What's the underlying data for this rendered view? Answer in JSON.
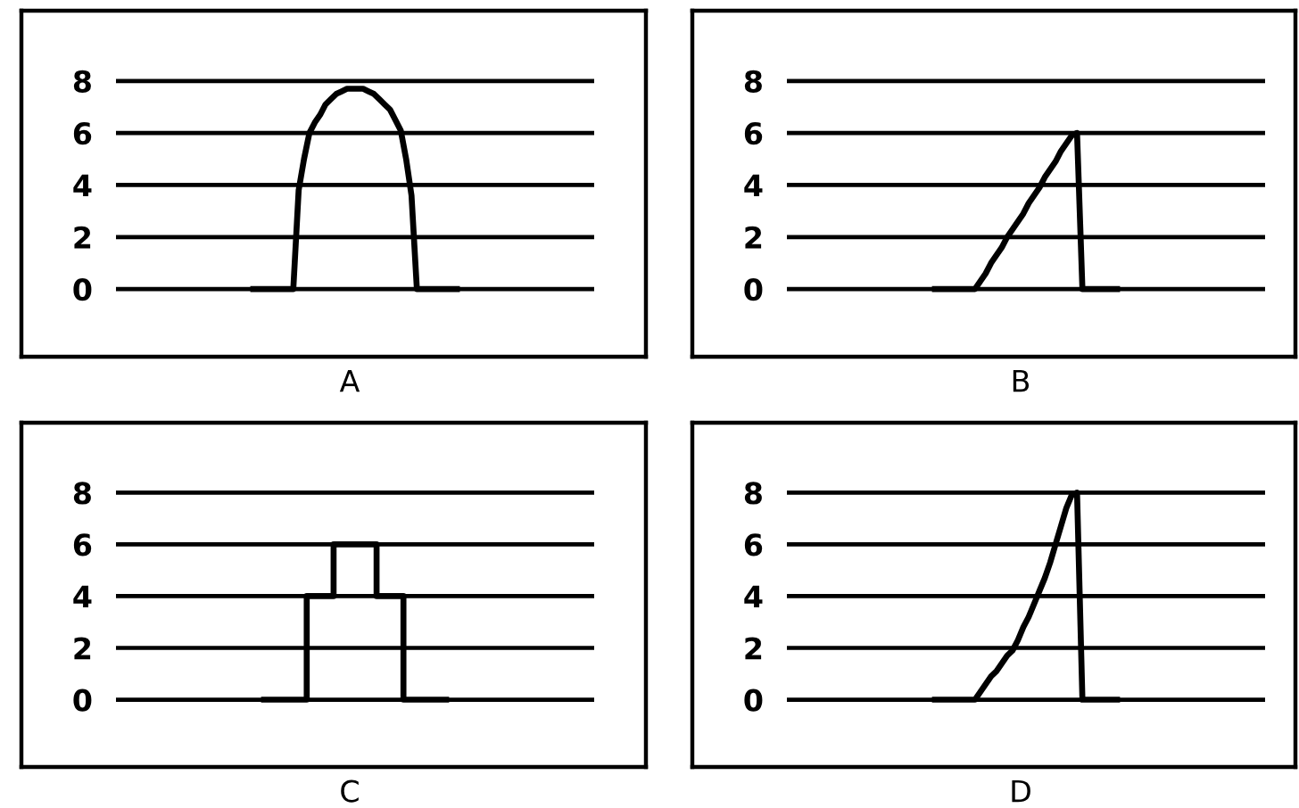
{
  "chart_data": [
    {
      "type": "line",
      "xlabel": "A",
      "color": "#000000",
      "ylim": [
        -2.6,
        10.7
      ],
      "yticks": [
        0,
        2,
        4,
        6,
        8
      ],
      "grid": "y",
      "tick_labels": "y",
      "categories": [
        null,
        null,
        null,
        null,
        null,
        null,
        null,
        null,
        null,
        null,
        null,
        null,
        null,
        null,
        null,
        null,
        null,
        null,
        null,
        null,
        null,
        null,
        null,
        null,
        null,
        null,
        null,
        null,
        null,
        null,
        null,
        null,
        null,
        null,
        null,
        null,
        null,
        null,
        null,
        null,
        null,
        null,
        null,
        null,
        null,
        null,
        null,
        null,
        null,
        null,
        null,
        null,
        null,
        null,
        null,
        null,
        null,
        null,
        null,
        null,
        null,
        null,
        null,
        null,
        null,
        null,
        null,
        null,
        null,
        null,
        null,
        null,
        null,
        null,
        null,
        null,
        null,
        null,
        null,
        null,
        null,
        null,
        null,
        null,
        null,
        null,
        null,
        null,
        null,
        null
      ],
      "values": [
        null,
        null,
        null,
        null,
        null,
        null,
        null,
        null,
        null,
        null,
        null,
        null,
        null,
        null,
        null,
        null,
        null,
        null,
        null,
        null,
        null,
        null,
        null,
        null,
        null,
        0,
        0,
        0,
        0,
        0,
        0,
        0,
        0,
        0,
        3.8,
        5.0,
        6.0,
        6.4,
        6.7,
        7.1,
        7.3,
        7.5,
        7.6,
        7.7,
        7.7,
        7.7,
        7.7,
        7.6,
        7.5,
        7.3,
        7.1,
        6.9,
        6.5,
        6.1,
        5.0,
        3.6,
        0,
        0,
        0,
        0,
        0,
        0,
        0,
        0,
        0,
        null,
        null,
        null,
        null,
        null,
        null,
        null,
        null,
        null,
        null,
        null,
        null,
        null,
        null,
        null,
        null,
        null,
        null,
        null,
        null,
        null,
        null,
        null,
        null,
        null
      ]
    },
    {
      "type": "line",
      "xlabel": "B",
      "color": "#000000",
      "ylim": [
        -2.6,
        10.7
      ],
      "yticks": [
        0,
        2,
        4,
        6,
        8
      ],
      "grid": "y",
      "tick_labels": "y",
      "categories": [
        null,
        null,
        null,
        null,
        null,
        null,
        null,
        null,
        null,
        null,
        null,
        null,
        null,
        null,
        null,
        null,
        null,
        null,
        null,
        null,
        null,
        null,
        null,
        null,
        null,
        null,
        null,
        null,
        null,
        null,
        null,
        null,
        null,
        null,
        null,
        null,
        null,
        null,
        null,
        null,
        null,
        null,
        null,
        null,
        null,
        null,
        null,
        null,
        null,
        null,
        null,
        null,
        null,
        null,
        null,
        null,
        null,
        null,
        null,
        null,
        null,
        null,
        null,
        null,
        null,
        null,
        null,
        null,
        null,
        null,
        null,
        null,
        null,
        null,
        null,
        null,
        null,
        null,
        null,
        null,
        null,
        null,
        null,
        null,
        null,
        null,
        null,
        null,
        null,
        null
      ],
      "values": [
        null,
        null,
        null,
        null,
        null,
        null,
        null,
        null,
        null,
        null,
        null,
        null,
        null,
        null,
        null,
        null,
        null,
        null,
        null,
        null,
        null,
        null,
        null,
        null,
        null,
        null,
        null,
        0,
        0,
        0,
        0,
        0,
        0,
        0,
        0,
        0,
        0.3,
        0.6,
        1.0,
        1.3,
        1.6,
        2.0,
        2.3,
        2.6,
        2.9,
        3.3,
        3.6,
        3.9,
        4.3,
        4.6,
        4.9,
        5.3,
        5.6,
        5.9,
        6.0,
        0,
        0,
        0,
        0,
        0,
        0,
        0,
        0,
        null,
        null,
        null,
        null,
        null,
        null,
        null,
        null,
        null,
        null,
        null,
        null,
        null,
        null,
        null,
        null,
        null,
        null,
        null,
        null,
        null,
        null,
        null,
        null,
        null,
        null,
        null
      ]
    },
    {
      "type": "step",
      "xlabel": "C",
      "color": "#000000",
      "ylim": [
        -2.6,
        10.7
      ],
      "yticks": [
        0,
        2,
        4,
        6,
        8
      ],
      "grid": "y",
      "tick_labels": "y",
      "categories": [
        null,
        null,
        null,
        null,
        null,
        null,
        null,
        null,
        null,
        null,
        null,
        null,
        null,
        null,
        null,
        null,
        null,
        null,
        null,
        null,
        null,
        null,
        null,
        null,
        null,
        null,
        null,
        null,
        null,
        null,
        null,
        null,
        null,
        null,
        null,
        null,
        null,
        null,
        null,
        null,
        null,
        null,
        null,
        null,
        null,
        null,
        null,
        null,
        null,
        null,
        null,
        null,
        null,
        null,
        null,
        null,
        null,
        null,
        null,
        null,
        null,
        null,
        null,
        null,
        null,
        null,
        null,
        null,
        null,
        null,
        null,
        null,
        null,
        null,
        null,
        null,
        null,
        null,
        null,
        null,
        null,
        null,
        null,
        null,
        null,
        null,
        null,
        null,
        null,
        null
      ],
      "values": [
        null,
        null,
        null,
        null,
        null,
        null,
        null,
        null,
        null,
        null,
        null,
        null,
        null,
        null,
        null,
        null,
        null,
        null,
        null,
        null,
        null,
        null,
        null,
        null,
        null,
        null,
        null,
        0,
        0,
        0,
        0,
        0,
        0,
        0,
        0,
        0,
        4,
        4,
        4,
        4,
        4,
        6,
        6,
        6,
        6,
        6,
        6,
        6,
        6,
        4,
        4,
        4,
        4,
        4,
        0,
        0,
        0,
        0,
        0,
        0,
        0,
        0,
        0,
        null,
        null,
        null,
        null,
        null,
        null,
        null,
        null,
        null,
        null,
        null,
        null,
        null,
        null,
        null,
        null,
        null,
        null,
        null,
        null,
        null,
        null,
        null,
        null,
        null,
        null,
        null
      ]
    },
    {
      "type": "line",
      "xlabel": "D",
      "color": "#000000",
      "ylim": [
        -2.6,
        10.7
      ],
      "yticks": [
        0,
        2,
        4,
        6,
        8
      ],
      "grid": "y",
      "tick_labels": "y",
      "categories": [
        null,
        null,
        null,
        null,
        null,
        null,
        null,
        null,
        null,
        null,
        null,
        null,
        null,
        null,
        null,
        null,
        null,
        null,
        null,
        null,
        null,
        null,
        null,
        null,
        null,
        null,
        null,
        null,
        null,
        null,
        null,
        null,
        null,
        null,
        null,
        null,
        null,
        null,
        null,
        null,
        null,
        null,
        null,
        null,
        null,
        null,
        null,
        null,
        null,
        null,
        null,
        null,
        null,
        null,
        null,
        null,
        null,
        null,
        null,
        null,
        null,
        null,
        null,
        null,
        null,
        null,
        null,
        null,
        null,
        null,
        null,
        null,
        null,
        null,
        null,
        null,
        null,
        null,
        null,
        null,
        null,
        null,
        null,
        null,
        null,
        null,
        null,
        null,
        null,
        null
      ],
      "values": [
        null,
        null,
        null,
        null,
        null,
        null,
        null,
        null,
        null,
        null,
        null,
        null,
        null,
        null,
        null,
        null,
        null,
        null,
        null,
        null,
        null,
        null,
        null,
        null,
        null,
        null,
        null,
        0,
        0,
        0,
        0,
        0,
        0,
        0,
        0,
        0,
        0.3,
        0.6,
        0.9,
        1.1,
        1.4,
        1.7,
        1.9,
        2.3,
        2.8,
        3.2,
        3.7,
        4.2,
        4.7,
        5.3,
        6.0,
        6.7,
        7.4,
        7.9,
        8.0,
        0,
        0,
        0,
        0,
        0,
        0,
        0,
        0,
        null,
        null,
        null,
        null,
        null,
        null,
        null,
        null,
        null,
        null,
        null,
        null,
        null,
        null,
        null,
        null,
        null,
        null,
        null,
        null,
        null,
        null,
        null,
        null,
        null,
        null,
        null
      ]
    }
  ]
}
